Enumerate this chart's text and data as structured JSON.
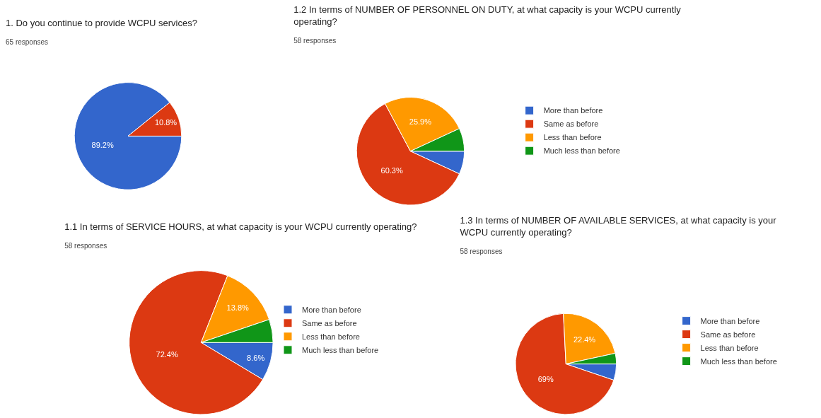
{
  "chart_data": [
    {
      "type": "pie",
      "title": "1. Do you continue to provide WCPU services?",
      "subtitle": "65 responses",
      "categories": [
        null,
        null
      ],
      "values": [
        89.2,
        10.8
      ],
      "colors": [
        "#3366cc",
        "#dc3912"
      ],
      "value_labels": [
        "89.2%",
        "10.8%"
      ],
      "legend": false
    },
    {
      "type": "pie",
      "title": "1.2 In terms of NUMBER OF PERSONNEL ON DUTY, at what capacity is your WCPU currently operating?",
      "subtitle": "58 responses",
      "categories": [
        "More than before",
        "Same as before",
        "Less than before",
        "Much less than before"
      ],
      "values": [
        6.9,
        60.3,
        25.9,
        6.9
      ],
      "colors": [
        "#3366cc",
        "#dc3912",
        "#ff9900",
        "#109618"
      ],
      "value_labels": [
        null,
        "60.3%",
        "25.9%",
        null
      ],
      "legend": "right"
    },
    {
      "type": "pie",
      "title": "1.1 In terms of SERVICE HOURS, at what capacity is your WCPU currently operating?",
      "subtitle": "58 responses",
      "categories": [
        "More than before",
        "Same as before",
        "Less than before",
        "Much less than before"
      ],
      "values": [
        8.6,
        72.4,
        13.8,
        5.2
      ],
      "colors": [
        "#3366cc",
        "#dc3912",
        "#ff9900",
        "#109618"
      ],
      "value_labels": [
        "8.6%",
        "72.4%",
        "13.8%",
        null
      ],
      "legend": "right"
    },
    {
      "type": "pie",
      "title": "1.3 In terms of NUMBER OF AVAILABLE SERVICES, at what capacity is your WCPU currently operating?",
      "subtitle": "58 responses",
      "categories": [
        "More than before",
        "Same as before",
        "Less than before",
        "Much less than before"
      ],
      "values": [
        5.2,
        69,
        22.4,
        3.4
      ],
      "colors": [
        "#3366cc",
        "#dc3912",
        "#ff9900",
        "#109618"
      ],
      "value_labels": [
        null,
        "69%",
        "22.4%",
        null
      ],
      "legend": "right"
    }
  ]
}
